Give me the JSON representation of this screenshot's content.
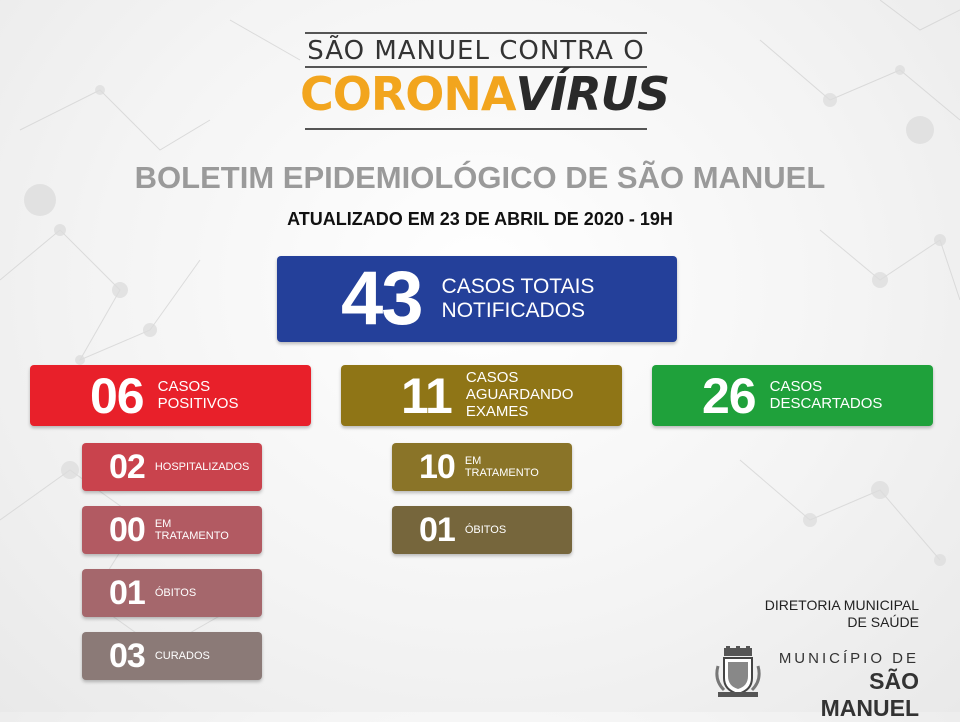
{
  "header": {
    "logo_top": "SÃO MANUEL CONTRA O",
    "logo_corona": "CORONA",
    "logo_virus": "VÍRUS",
    "title": "BOLETIM EPIDEMIOLÓGICO DE SÃO MANUEL",
    "updated": "ATUALIZADO EM 23 DE ABRIL DE 2020 - 19H"
  },
  "total": {
    "value": "43",
    "label_line1": "CASOS TOTAIS",
    "label_line2": "NOTIFICADOS",
    "color": "#24409a"
  },
  "positivos": {
    "value": "06",
    "label_line1": "CASOS",
    "label_line2": "POSITIVOS",
    "color": "#e8202a",
    "items": [
      {
        "value": "02",
        "label_line1": "HOSPITALIZADOS",
        "label_line2": ""
      },
      {
        "value": "00",
        "label_line1": "EM",
        "label_line2": "TRATAMENTO"
      },
      {
        "value": "01",
        "label_line1": "ÓBITOS",
        "label_line2": ""
      },
      {
        "value": "03",
        "label_line1": "CURADOS",
        "label_line2": ""
      }
    ]
  },
  "aguardando": {
    "value": "11",
    "label_line1": "CASOS",
    "label_line2": "AGUARDANDO EXAMES",
    "color": "#8f7516",
    "items": [
      {
        "value": "10",
        "label_line1": "EM",
        "label_line2": "TRATAMENTO"
      },
      {
        "value": "01",
        "label_line1": "ÓBITOS",
        "label_line2": ""
      }
    ]
  },
  "descartados": {
    "value": "26",
    "label_line1": "CASOS",
    "label_line2": "DESCARTADOS",
    "color": "#1fa13b"
  },
  "footer": {
    "diretoria_line1": "DIRETORIA MUNICIPAL",
    "diretoria_line2": "DE SAÚDE",
    "municipio_label": "MUNICÍPIO DE",
    "municipio_name": "SÃO MANUEL",
    "crest_icon": "coat-of-arms-icon"
  }
}
